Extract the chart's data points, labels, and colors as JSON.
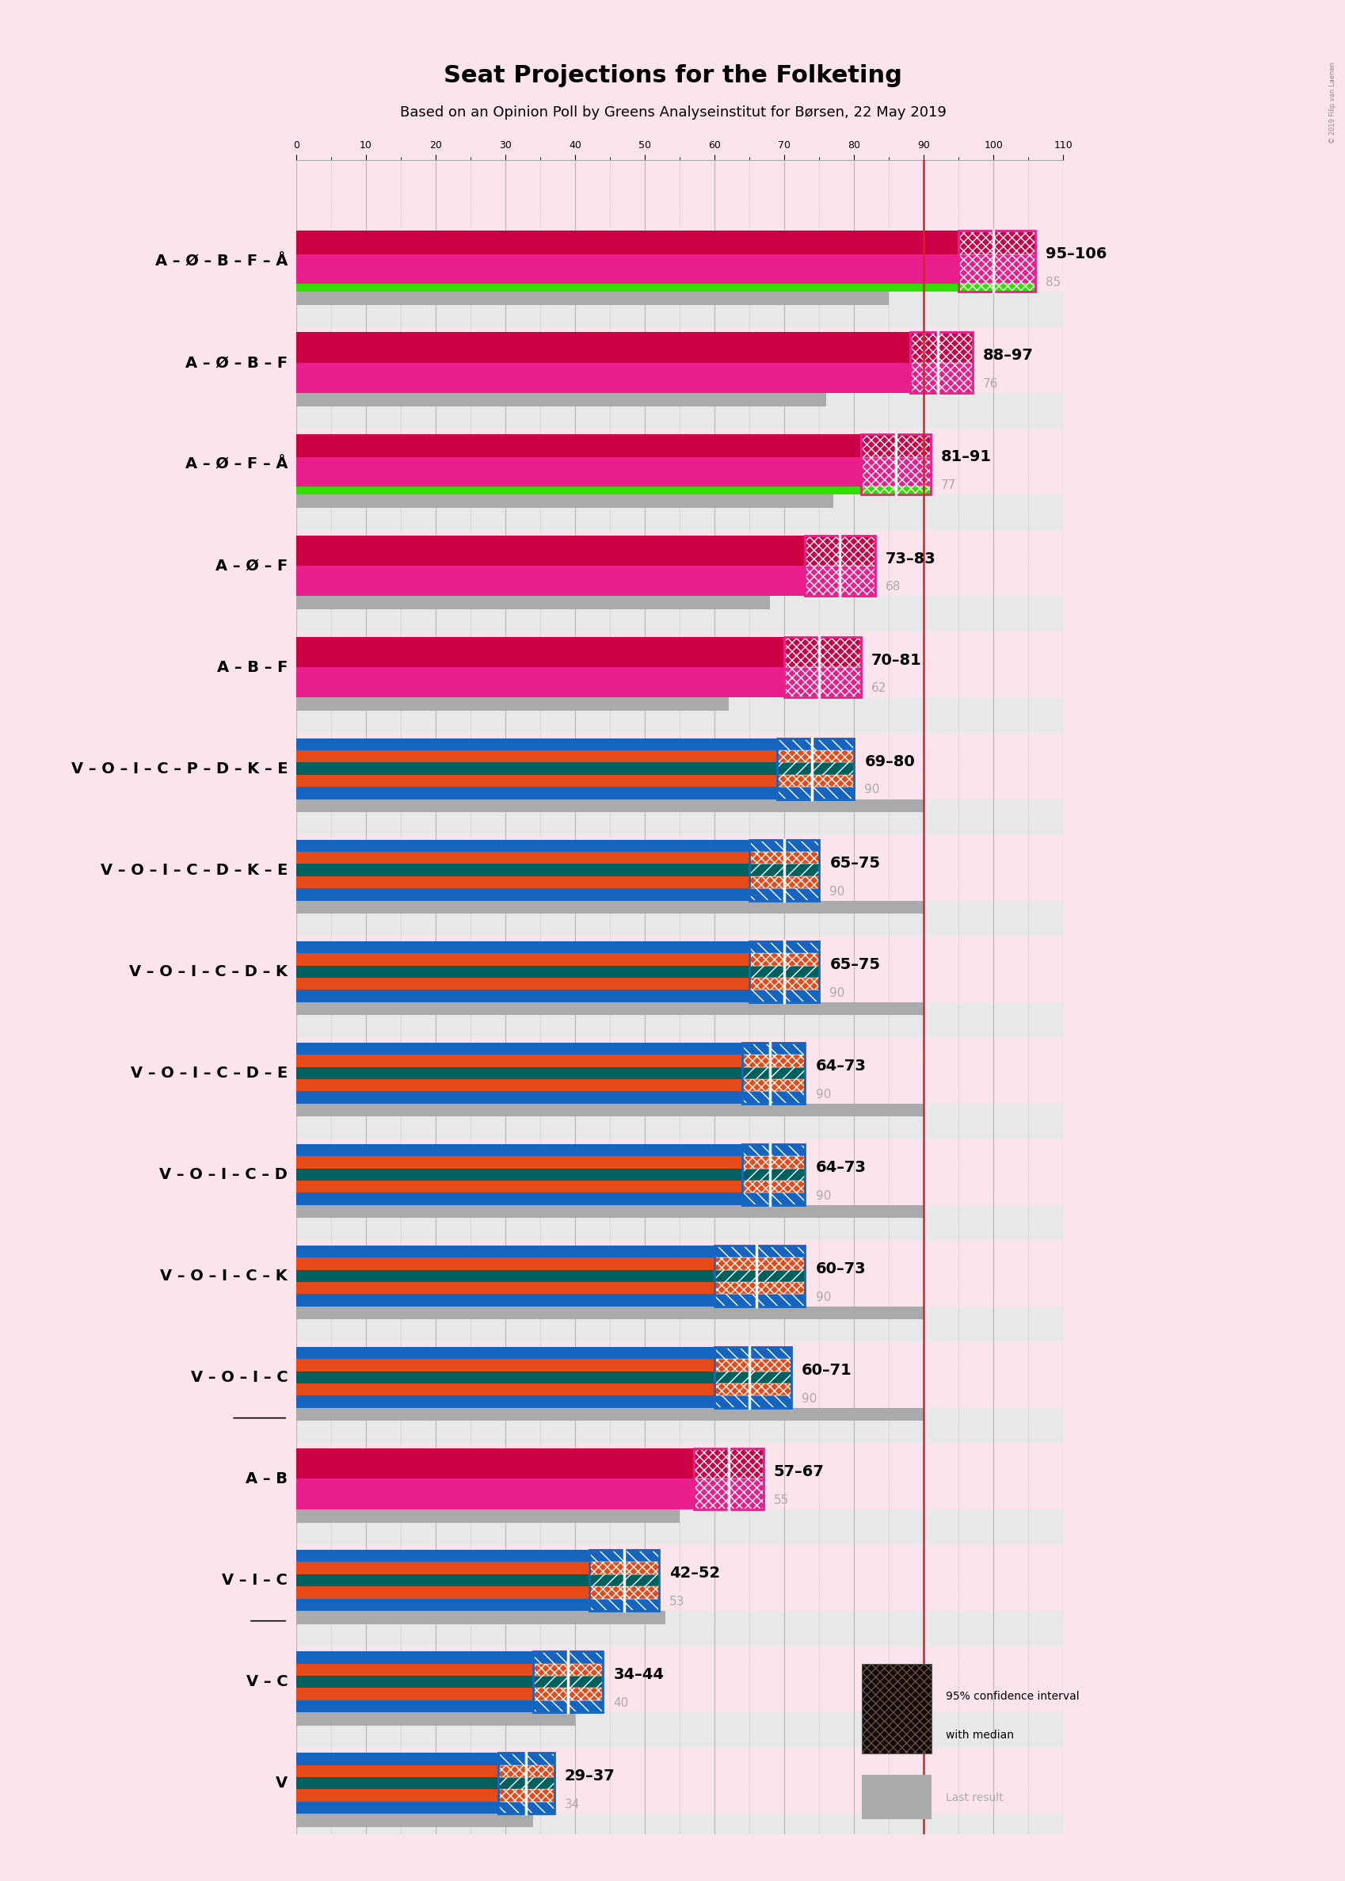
{
  "title": "Seat Projections for the Folketing",
  "subtitle": "Based on an Opinion Poll by Greens Analyseinstitut for Børsen, 22 May 2019",
  "copyright": "© 2019 Filip van Laenen",
  "background_color": "#fce4ec",
  "coalitions": [
    {
      "label": "A – Ø – B – F – Å",
      "ci_low": 95,
      "ci_high": 106,
      "median": 100,
      "last": 85,
      "type": "left",
      "has_green": true,
      "underline": false
    },
    {
      "label": "A – Ø – B – F",
      "ci_low": 88,
      "ci_high": 97,
      "median": 92,
      "last": 76,
      "type": "left",
      "has_green": false,
      "underline": false
    },
    {
      "label": "A – Ø – F – Å",
      "ci_low": 81,
      "ci_high": 91,
      "median": 86,
      "last": 77,
      "type": "left",
      "has_green": true,
      "underline": false
    },
    {
      "label": "A – Ø – F",
      "ci_low": 73,
      "ci_high": 83,
      "median": 78,
      "last": 68,
      "type": "left",
      "has_green": false,
      "underline": false
    },
    {
      "label": "A – B – F",
      "ci_low": 70,
      "ci_high": 81,
      "median": 75,
      "last": 62,
      "type": "left",
      "has_green": false,
      "underline": false
    },
    {
      "label": "V – O – I – C – P – D – K – E",
      "ci_low": 69,
      "ci_high": 80,
      "median": 74,
      "last": 90,
      "type": "right",
      "has_green": false,
      "underline": false
    },
    {
      "label": "V – O – I – C – D – K – E",
      "ci_low": 65,
      "ci_high": 75,
      "median": 70,
      "last": 90,
      "type": "right",
      "has_green": false,
      "underline": false
    },
    {
      "label": "V – O – I – C – D – K",
      "ci_low": 65,
      "ci_high": 75,
      "median": 70,
      "last": 90,
      "type": "right",
      "has_green": false,
      "underline": false
    },
    {
      "label": "V – O – I – C – D – E",
      "ci_low": 64,
      "ci_high": 73,
      "median": 68,
      "last": 90,
      "type": "right",
      "has_green": false,
      "underline": false
    },
    {
      "label": "V – O – I – C – D",
      "ci_low": 64,
      "ci_high": 73,
      "median": 68,
      "last": 90,
      "type": "right",
      "has_green": false,
      "underline": false
    },
    {
      "label": "V – O – I – C – K",
      "ci_low": 60,
      "ci_high": 73,
      "median": 66,
      "last": 90,
      "type": "right",
      "has_green": false,
      "underline": false
    },
    {
      "label": "V – O – I – C",
      "ci_low": 60,
      "ci_high": 71,
      "median": 65,
      "last": 90,
      "type": "right",
      "has_green": false,
      "underline": true
    },
    {
      "label": "A – B",
      "ci_low": 57,
      "ci_high": 67,
      "median": 62,
      "last": 55,
      "type": "left",
      "has_green": false,
      "underline": false
    },
    {
      "label": "V – I – C",
      "ci_low": 42,
      "ci_high": 52,
      "median": 47,
      "last": 53,
      "type": "right",
      "has_green": false,
      "underline": true
    },
    {
      "label": "V – C",
      "ci_low": 34,
      "ci_high": 44,
      "median": 39,
      "last": 40,
      "type": "right",
      "has_green": false,
      "underline": false
    },
    {
      "label": "V",
      "ci_low": 29,
      "ci_high": 37,
      "median": 33,
      "last": 34,
      "type": "right",
      "has_green": false,
      "underline": false
    }
  ],
  "majority_line": 90,
  "x_max": 110,
  "left_colors": [
    "#e91e8c",
    "#cc0044"
  ],
  "left_green": "#33dd00",
  "right_stripe_colors": [
    "#1565c0",
    "#e64a19",
    "#005f5f",
    "#e64a19",
    "#1565c0"
  ],
  "last_color": "#aaaaaa",
  "majority_color": "#dd2222",
  "gap_color": "#dddddd",
  "ci_border_left": "#e91e8c",
  "ci_border_right": "#1565c0",
  "label_fontsize": 14,
  "range_fontsize": 14,
  "last_fontsize": 11
}
